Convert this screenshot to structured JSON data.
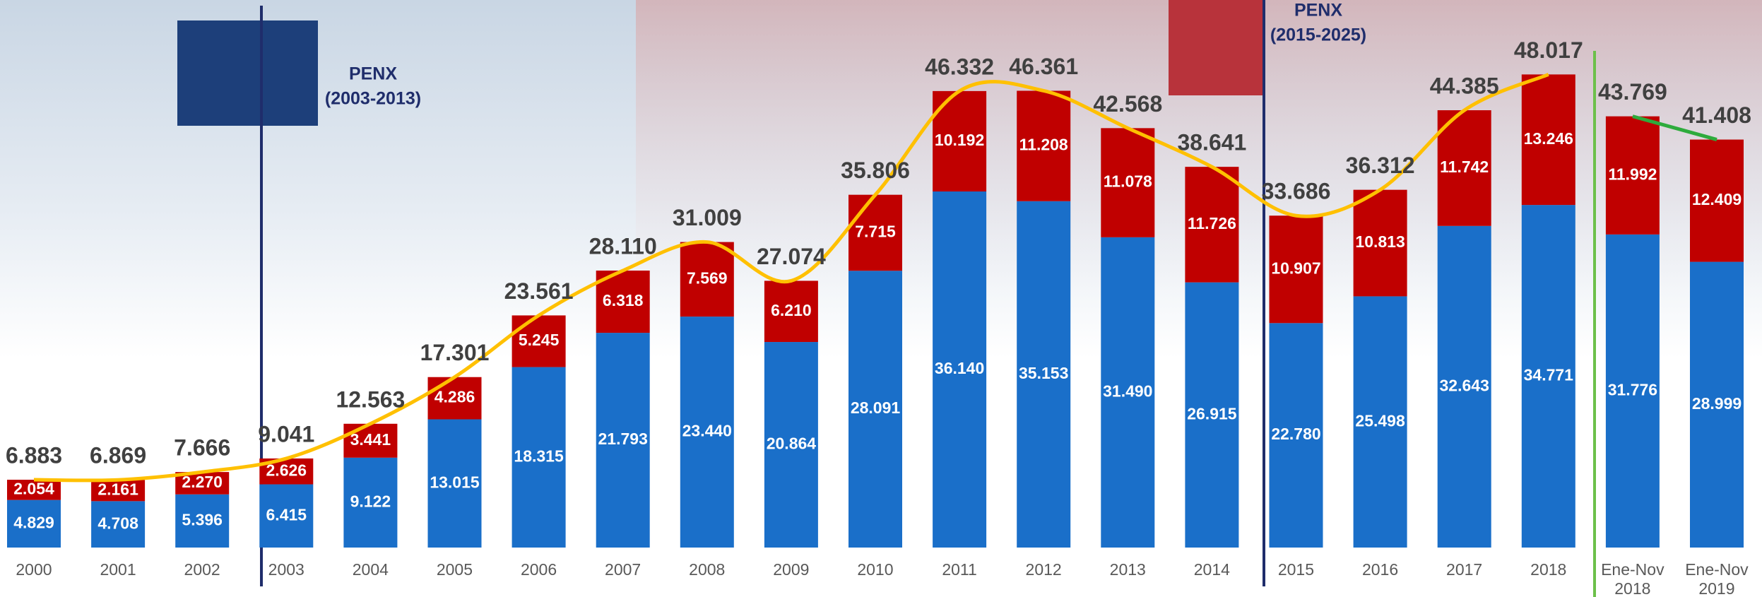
{
  "chart_data": {
    "type": "bar",
    "stacked": true,
    "categories": [
      "2000",
      "2001",
      "2002",
      "2003",
      "2004",
      "2005",
      "2006",
      "2007",
      "2008",
      "2009",
      "2010",
      "2011",
      "2012",
      "2013",
      "2014",
      "2015",
      "2016",
      "2017",
      "2018",
      "Ene-Nov 2018",
      "Ene-Nov 2019"
    ],
    "series": [
      {
        "color": "#1a6fc9",
        "values": [
          4.829,
          4.708,
          5.396,
          6.415,
          9.122,
          13.015,
          18.315,
          21.793,
          23.44,
          20.864,
          28.091,
          36.14,
          35.153,
          31.49,
          26.915,
          22.78,
          25.498,
          32.643,
          34.771,
          31.776,
          28.999
        ],
        "value_labels": [
          "4.829",
          "4.708",
          "5.396",
          "6.415",
          "9.122",
          "13.015",
          "18.315",
          "21.793",
          "23.440",
          "20.864",
          "28.091",
          "36.140",
          "35.153",
          "31.490",
          "26.915",
          "22.780",
          "25.498",
          "32.643",
          "34.771",
          "31.776",
          "28.999"
        ]
      },
      {
        "color": "#c00000",
        "values": [
          2.054,
          2.161,
          2.27,
          2.626,
          3.441,
          4.286,
          5.245,
          6.318,
          7.569,
          6.21,
          7.715,
          10.192,
          11.208,
          11.078,
          11.726,
          10.907,
          10.813,
          11.742,
          13.246,
          11.992,
          12.409
        ],
        "value_labels": [
          "2.054",
          "2.161",
          "2.270",
          "2.626",
          "3.441",
          "4.286",
          "5.245",
          "6.318",
          "7.569",
          "6.210",
          "7.715",
          "10.192",
          "11.208",
          "11.078",
          "11.726",
          "10.907",
          "10.813",
          "11.742",
          "13.246",
          "11.992",
          "12.409"
        ]
      }
    ],
    "totals": {
      "line_color": "#ffc000",
      "last_line_color": "#2eab3c",
      "values": [
        6.883,
        6.869,
        7.666,
        9.041,
        12.563,
        17.301,
        23.561,
        28.11,
        31.009,
        27.074,
        35.806,
        46.332,
        46.361,
        42.568,
        38.641,
        33.686,
        36.312,
        44.385,
        48.017,
        43.769,
        41.408
      ],
      "value_labels": [
        "6.883",
        "6.869",
        "7.666",
        "9.041",
        "12.563",
        "17.301",
        "23.561",
        "28.110",
        "31.009",
        "27.074",
        "35.806",
        "46.332",
        "46.361",
        "42.568",
        "38.641",
        "33.686",
        "36.312",
        "44.385",
        "48.017",
        "43.769",
        "41.408"
      ]
    },
    "annotations": [
      [
        "PENX",
        "(2003-2013)"
      ],
      [
        "PENX",
        "(2015-2025)"
      ]
    ],
    "ylim": [
      0,
      55
    ]
  }
}
